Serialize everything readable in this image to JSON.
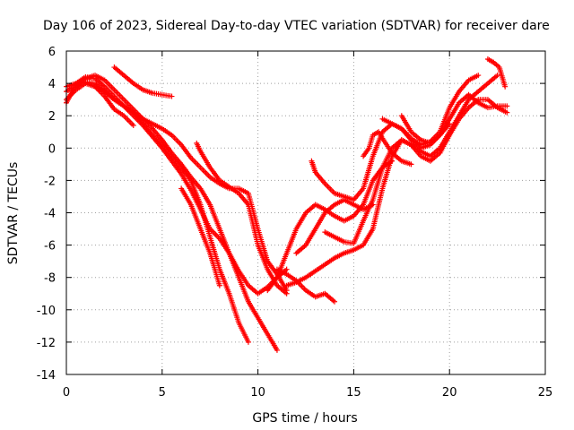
{
  "chart_data": {
    "type": "scatter",
    "title": "Day 106 of 2023, Sidereal Day-to-day VTEC variation (SDTVAR) for receiver dare",
    "xlabel": "GPS time / hours",
    "ylabel": "SDTVAR / TECUs",
    "xlim": [
      0,
      25
    ],
    "ylim": [
      -14,
      6
    ],
    "xticks": [
      0,
      5,
      10,
      15,
      20,
      25
    ],
    "yticks": [
      -14,
      -12,
      -10,
      -8,
      -6,
      -4,
      -2,
      0,
      2,
      4,
      6
    ],
    "grid": true,
    "marker": "plus",
    "series": [
      {
        "color": "#ff0000",
        "points": [
          [
            0.0,
            2.8
          ],
          [
            0.3,
            3.5
          ],
          [
            0.7,
            4.0
          ],
          [
            1.0,
            4.1
          ],
          [
            1.5,
            4.0
          ],
          [
            2.0,
            3.5
          ],
          [
            2.5,
            3.0
          ],
          [
            3.0,
            2.6
          ],
          [
            3.5,
            2.2
          ],
          [
            4.0,
            1.5
          ],
          [
            4.5,
            0.8
          ],
          [
            5.0,
            0.2
          ],
          [
            5.5,
            -0.5
          ],
          [
            6.0,
            -1.2
          ],
          [
            6.5,
            -2.0
          ],
          [
            7.0,
            -3.5
          ],
          [
            7.5,
            -5.5
          ],
          [
            8.0,
            -7.5
          ],
          [
            8.5,
            -9.0
          ],
          [
            9.0,
            -10.8
          ],
          [
            9.5,
            -12.0
          ]
        ]
      },
      {
        "color": "#ff0000",
        "points": [
          [
            0.0,
            3.5
          ],
          [
            0.5,
            3.9
          ],
          [
            1.0,
            4.3
          ],
          [
            1.5,
            4.5
          ],
          [
            2.0,
            4.2
          ],
          [
            2.5,
            3.6
          ],
          [
            3.0,
            3.0
          ],
          [
            3.5,
            2.4
          ],
          [
            4.0,
            1.8
          ],
          [
            4.5,
            1.2
          ],
          [
            5.0,
            0.5
          ],
          [
            5.5,
            -0.3
          ],
          [
            6.0,
            -1.0
          ],
          [
            6.5,
            -1.8
          ],
          [
            7.0,
            -2.5
          ],
          [
            7.5,
            -3.5
          ],
          [
            8.0,
            -5.0
          ],
          [
            8.5,
            -6.5
          ],
          [
            9.0,
            -8.0
          ],
          [
            9.5,
            -9.5
          ],
          [
            10.0,
            -10.5
          ],
          [
            10.5,
            -11.5
          ],
          [
            11.0,
            -12.5
          ]
        ]
      },
      {
        "color": "#ff0000",
        "points": [
          [
            0.0,
            3.8
          ],
          [
            0.5,
            4.0
          ],
          [
            1.0,
            4.4
          ],
          [
            1.5,
            4.3
          ],
          [
            2.0,
            3.8
          ],
          [
            2.5,
            3.2
          ],
          [
            3.0,
            2.6
          ],
          [
            3.5,
            2.0
          ],
          [
            4.0,
            1.4
          ],
          [
            4.5,
            0.7
          ],
          [
            5.0,
            0.0
          ],
          [
            5.5,
            -0.8
          ],
          [
            6.0,
            -1.6
          ],
          [
            6.5,
            -2.6
          ],
          [
            7.0,
            -3.8
          ],
          [
            7.5,
            -5.0
          ],
          [
            8.0,
            -5.6
          ],
          [
            8.5,
            -6.5
          ],
          [
            9.0,
            -7.6
          ],
          [
            9.5,
            -8.5
          ],
          [
            10.0,
            -9.0
          ],
          [
            10.5,
            -8.6
          ],
          [
            11.0,
            -8.0
          ],
          [
            11.5,
            -7.5
          ]
        ]
      },
      {
        "color": "#ff0000",
        "points": [
          [
            0.0,
            3.0
          ],
          [
            0.5,
            3.6
          ],
          [
            1.0,
            4.0
          ],
          [
            1.5,
            3.8
          ],
          [
            2.0,
            3.2
          ],
          [
            2.5,
            2.4
          ],
          [
            3.0,
            2.0
          ],
          [
            3.5,
            1.4
          ]
        ]
      },
      {
        "color": "#ff0000",
        "points": [
          [
            2.5,
            5.0
          ],
          [
            3.0,
            4.5
          ],
          [
            3.5,
            4.0
          ],
          [
            4.0,
            3.6
          ],
          [
            4.5,
            3.4
          ],
          [
            5.0,
            3.3
          ],
          [
            5.5,
            3.2
          ]
        ]
      },
      {
        "color": "#ff0000",
        "points": [
          [
            1.5,
            3.8
          ],
          [
            2.0,
            3.5
          ],
          [
            2.5,
            3.0
          ],
          [
            3.0,
            2.6
          ],
          [
            3.5,
            2.2
          ],
          [
            4.0,
            1.8
          ],
          [
            4.5,
            1.5
          ],
          [
            5.0,
            1.2
          ],
          [
            5.5,
            0.8
          ],
          [
            6.0,
            0.2
          ],
          [
            6.5,
            -0.6
          ],
          [
            7.0,
            -1.2
          ],
          [
            7.5,
            -1.8
          ],
          [
            8.0,
            -2.2
          ],
          [
            8.5,
            -2.5
          ],
          [
            9.0,
            -2.5
          ],
          [
            9.5,
            -2.8
          ],
          [
            10.0,
            -5.0
          ],
          [
            10.5,
            -7.0
          ],
          [
            11.0,
            -7.8
          ],
          [
            11.5,
            -8.8
          ]
        ]
      },
      {
        "color": "#ff0000",
        "points": [
          [
            6.8,
            0.3
          ],
          [
            7.0,
            -0.2
          ],
          [
            7.5,
            -1.2
          ],
          [
            8.0,
            -2.0
          ],
          [
            8.5,
            -2.4
          ],
          [
            9.0,
            -2.8
          ],
          [
            9.5,
            -3.5
          ],
          [
            10.0,
            -6.0
          ],
          [
            10.5,
            -7.5
          ],
          [
            11.0,
            -8.5
          ],
          [
            11.5,
            -9.0
          ]
        ]
      },
      {
        "color": "#ff0000",
        "points": [
          [
            10.5,
            -8.8
          ],
          [
            11.0,
            -8.0
          ],
          [
            11.5,
            -6.5
          ],
          [
            12.0,
            -5.0
          ],
          [
            12.5,
            -4.0
          ],
          [
            13.0,
            -3.5
          ],
          [
            13.5,
            -3.8
          ],
          [
            14.0,
            -4.2
          ],
          [
            14.5,
            -4.5
          ],
          [
            15.0,
            -4.2
          ],
          [
            15.5,
            -3.5
          ],
          [
            16.0,
            -2.0
          ],
          [
            16.5,
            -1.2
          ],
          [
            17.0,
            -0.8
          ]
        ]
      },
      {
        "color": "#ff0000",
        "points": [
          [
            11.5,
            -8.5
          ],
          [
            12.0,
            -8.3
          ],
          [
            12.5,
            -8.0
          ],
          [
            13.0,
            -7.6
          ],
          [
            13.5,
            -7.2
          ],
          [
            14.0,
            -6.8
          ],
          [
            14.5,
            -6.5
          ],
          [
            15.0,
            -6.3
          ],
          [
            15.5,
            -6.0
          ],
          [
            16.0,
            -5.0
          ],
          [
            16.5,
            -2.5
          ],
          [
            17.0,
            -0.5
          ],
          [
            17.5,
            0.5
          ],
          [
            18.0,
            0.2
          ],
          [
            18.5,
            -0.2
          ],
          [
            19.0,
            -0.5
          ],
          [
            19.5,
            0.0
          ],
          [
            20.0,
            1.0
          ],
          [
            20.5,
            2.0
          ],
          [
            21.0,
            3.0
          ],
          [
            21.5,
            3.5
          ],
          [
            22.0,
            4.0
          ],
          [
            22.5,
            4.5
          ]
        ]
      },
      {
        "color": "#ff0000",
        "points": [
          [
            12.0,
            -6.5
          ],
          [
            12.5,
            -6.0
          ],
          [
            13.0,
            -5.0
          ],
          [
            13.5,
            -4.0
          ],
          [
            14.0,
            -3.5
          ],
          [
            14.5,
            -3.2
          ],
          [
            15.0,
            -3.5
          ],
          [
            15.5,
            -3.8
          ],
          [
            16.0,
            -3.5
          ]
        ]
      },
      {
        "color": "#ff0000",
        "points": [
          [
            12.8,
            -0.8
          ],
          [
            13.0,
            -1.5
          ],
          [
            13.5,
            -2.2
          ],
          [
            14.0,
            -2.8
          ],
          [
            14.5,
            -3.0
          ],
          [
            15.0,
            -3.2
          ],
          [
            15.5,
            -2.5
          ],
          [
            16.0,
            -0.5
          ],
          [
            16.5,
            1.0
          ],
          [
            17.0,
            1.5
          ],
          [
            17.5,
            1.2
          ],
          [
            18.0,
            0.5
          ],
          [
            18.5,
            0.0
          ],
          [
            19.0,
            0.2
          ],
          [
            19.5,
            0.8
          ],
          [
            20.0,
            1.8
          ],
          [
            20.5,
            2.8
          ],
          [
            21.0,
            3.3
          ],
          [
            21.5,
            2.8
          ],
          [
            22.0,
            2.5
          ],
          [
            22.5,
            2.6
          ],
          [
            23.0,
            2.6
          ]
        ]
      },
      {
        "color": "#ff0000",
        "points": [
          [
            13.5,
            -5.2
          ],
          [
            14.0,
            -5.5
          ],
          [
            14.5,
            -5.8
          ],
          [
            15.0,
            -5.9
          ],
          [
            15.5,
            -4.5
          ],
          [
            16.0,
            -3.2
          ],
          [
            16.5,
            -1.2
          ],
          [
            17.0,
            0.0
          ],
          [
            17.5,
            0.5
          ],
          [
            18.0,
            0.2
          ],
          [
            18.5,
            -0.5
          ],
          [
            19.0,
            -0.8
          ],
          [
            19.5,
            -0.3
          ],
          [
            20.0,
            0.8
          ],
          [
            20.5,
            1.8
          ],
          [
            21.0,
            2.5
          ],
          [
            21.5,
            3.0
          ],
          [
            22.0,
            3.0
          ],
          [
            22.5,
            2.5
          ],
          [
            23.0,
            2.2
          ]
        ]
      },
      {
        "color": "#ff0000",
        "points": [
          [
            11.0,
            -7.5
          ],
          [
            11.5,
            -7.8
          ],
          [
            12.0,
            -8.2
          ],
          [
            12.5,
            -8.8
          ],
          [
            13.0,
            -9.2
          ],
          [
            13.5,
            -9.0
          ],
          [
            14.0,
            -9.5
          ]
        ]
      },
      {
        "color": "#ff0000",
        "points": [
          [
            6.0,
            -2.5
          ],
          [
            6.5,
            -3.5
          ],
          [
            7.0,
            -5.0
          ],
          [
            7.5,
            -6.5
          ],
          [
            8.0,
            -8.5
          ]
        ]
      },
      {
        "color": "#ff0000",
        "points": [
          [
            15.5,
            -0.5
          ],
          [
            15.8,
            0.0
          ],
          [
            16.0,
            0.8
          ],
          [
            16.3,
            1.0
          ],
          [
            16.5,
            0.6
          ],
          [
            17.0,
            -0.3
          ],
          [
            17.5,
            -0.8
          ],
          [
            18.0,
            -1.0
          ]
        ]
      },
      {
        "color": "#ff0000",
        "points": [
          [
            16.5,
            1.8
          ],
          [
            17.0,
            1.5
          ],
          [
            17.5,
            1.2
          ],
          [
            18.0,
            0.6
          ],
          [
            18.5,
            0.2
          ],
          [
            19.0,
            0.4
          ],
          [
            19.5,
            1.0
          ],
          [
            20.0,
            2.5
          ],
          [
            20.5,
            3.5
          ],
          [
            21.0,
            4.2
          ],
          [
            21.5,
            4.5
          ]
        ]
      },
      {
        "color": "#ff0000",
        "points": [
          [
            17.5,
            2.0
          ],
          [
            18.0,
            1.0
          ],
          [
            18.5,
            0.5
          ],
          [
            19.0,
            0.3
          ],
          [
            19.5,
            0.8
          ],
          [
            20.0,
            1.5
          ]
        ]
      },
      {
        "color": "#ff0000",
        "points": [
          [
            22.0,
            5.5
          ],
          [
            22.3,
            5.3
          ],
          [
            22.6,
            5.0
          ],
          [
            22.9,
            3.8
          ]
        ]
      }
    ]
  }
}
